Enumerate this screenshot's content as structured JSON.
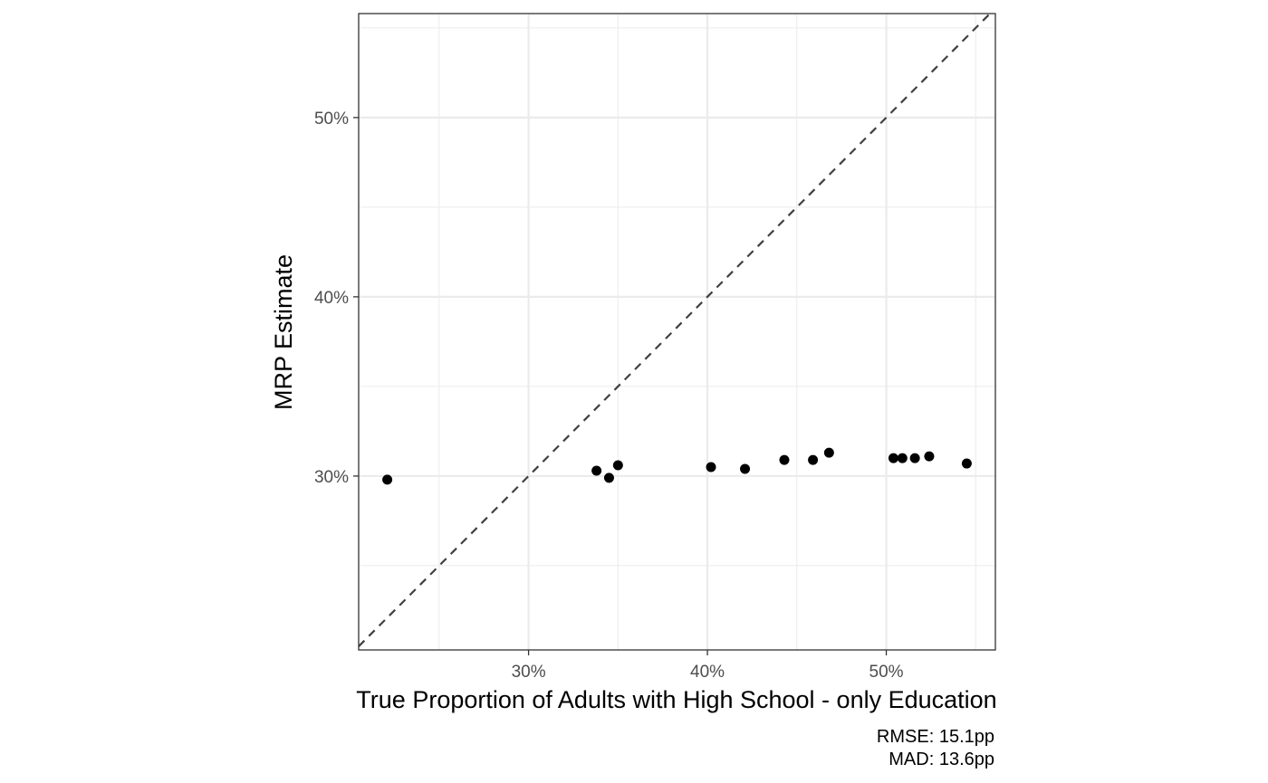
{
  "chart_data": {
    "type": "scatter",
    "xlabel": "True Proportion of Adults with High School - only Education",
    "ylabel": "MRP Estimate",
    "xlim": [
      20.5,
      56.1
    ],
    "ylim": [
      20.3,
      55.8
    ],
    "x_ticks": [
      30,
      40,
      50
    ],
    "x_tick_labels": [
      "30%",
      "40%",
      "50%"
    ],
    "x_minor_ticks": [
      25,
      35,
      45,
      55
    ],
    "y_ticks": [
      30,
      40,
      50
    ],
    "y_tick_labels": [
      "30%",
      "40%",
      "50%"
    ],
    "y_minor_ticks": [
      25,
      35,
      45,
      55
    ],
    "grid": true,
    "reference_line": {
      "type": "identity",
      "style": "dashed",
      "color": "#404040"
    },
    "points": [
      {
        "x": 22.1,
        "y": 29.8
      },
      {
        "x": 33.8,
        "y": 30.3
      },
      {
        "x": 34.5,
        "y": 29.9
      },
      {
        "x": 35.0,
        "y": 30.6
      },
      {
        "x": 40.2,
        "y": 30.5
      },
      {
        "x": 42.1,
        "y": 30.4
      },
      {
        "x": 44.3,
        "y": 30.9
      },
      {
        "x": 45.9,
        "y": 30.9
      },
      {
        "x": 46.8,
        "y": 31.3
      },
      {
        "x": 50.4,
        "y": 31.0
      },
      {
        "x": 50.9,
        "y": 31.0
      },
      {
        "x": 51.6,
        "y": 31.0
      },
      {
        "x": 52.4,
        "y": 31.1
      },
      {
        "x": 54.5,
        "y": 30.7
      }
    ],
    "point_color": "#000000",
    "caption_lines": [
      "RMSE: 15.1pp",
      "MAD: 13.6pp"
    ]
  }
}
